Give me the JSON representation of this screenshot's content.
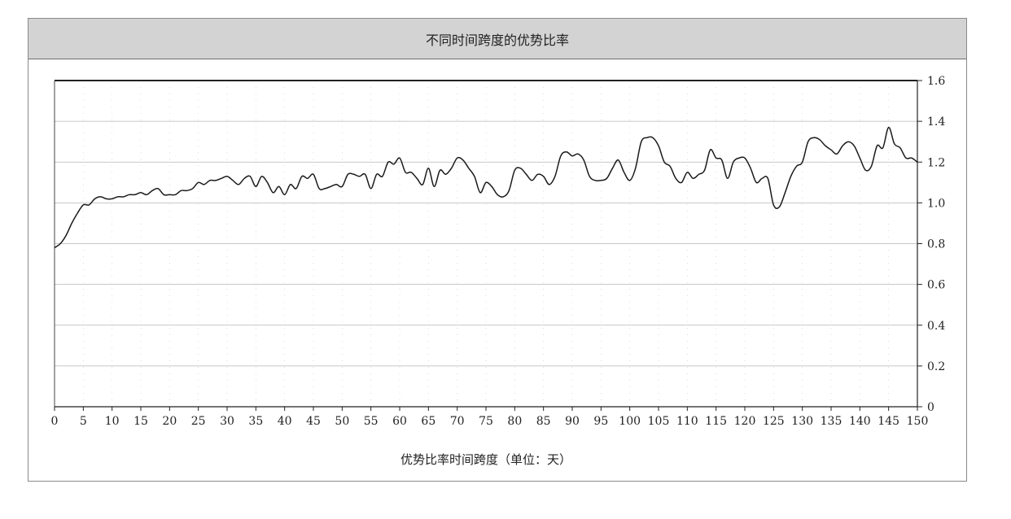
{
  "chart_data": {
    "type": "line",
    "title": "不同时间跨度的优势比率",
    "xlabel": "优势比率时间跨度（单位：天）",
    "ylabel": "",
    "xlim": [
      0,
      150
    ],
    "ylim": [
      0,
      1.6
    ],
    "x_ticks": [
      0,
      5,
      10,
      15,
      20,
      25,
      30,
      35,
      40,
      45,
      50,
      55,
      60,
      65,
      70,
      75,
      80,
      85,
      90,
      95,
      100,
      105,
      110,
      115,
      120,
      125,
      130,
      135,
      140,
      145,
      150
    ],
    "y_ticks": [
      0,
      0.2,
      0.4,
      0.6,
      0.8,
      1.0,
      1.2,
      1.4,
      1.6
    ],
    "y_tick_labels": [
      "0",
      "0.2",
      "0.4",
      "0.6",
      "0.8",
      "1.0",
      "1.2",
      "1.4",
      "1.6"
    ],
    "y_axis_side": "right",
    "grid": true,
    "series": [
      {
        "name": "",
        "points": [
          [
            0,
            0.78
          ],
          [
            1,
            0.8
          ],
          [
            2,
            0.84
          ],
          [
            3,
            0.9
          ],
          [
            4,
            0.95
          ],
          [
            5,
            0.99
          ],
          [
            6,
            0.99
          ],
          [
            7,
            1.02
          ],
          [
            8,
            1.03
          ],
          [
            9,
            1.02
          ],
          [
            10,
            1.02
          ],
          [
            11,
            1.03
          ],
          [
            12,
            1.03
          ],
          [
            13,
            1.04
          ],
          [
            14,
            1.04
          ],
          [
            15,
            1.05
          ],
          [
            16,
            1.04
          ],
          [
            17,
            1.06
          ],
          [
            18,
            1.07
          ],
          [
            19,
            1.04
          ],
          [
            20,
            1.04
          ],
          [
            21,
            1.04
          ],
          [
            22,
            1.06
          ],
          [
            23,
            1.06
          ],
          [
            24,
            1.07
          ],
          [
            25,
            1.1
          ],
          [
            26,
            1.09
          ],
          [
            27,
            1.11
          ],
          [
            28,
            1.11
          ],
          [
            29,
            1.12
          ],
          [
            30,
            1.13
          ],
          [
            31,
            1.11
          ],
          [
            32,
            1.09
          ],
          [
            33,
            1.12
          ],
          [
            34,
            1.13
          ],
          [
            35,
            1.08
          ],
          [
            36,
            1.13
          ],
          [
            37,
            1.1
          ],
          [
            38,
            1.05
          ],
          [
            39,
            1.08
          ],
          [
            40,
            1.04
          ],
          [
            41,
            1.09
          ],
          [
            42,
            1.07
          ],
          [
            43,
            1.13
          ],
          [
            44,
            1.12
          ],
          [
            45,
            1.14
          ],
          [
            46,
            1.07
          ],
          [
            47,
            1.07
          ],
          [
            48,
            1.08
          ],
          [
            49,
            1.09
          ],
          [
            50,
            1.08
          ],
          [
            51,
            1.14
          ],
          [
            52,
            1.14
          ],
          [
            53,
            1.13
          ],
          [
            54,
            1.14
          ],
          [
            55,
            1.07
          ],
          [
            56,
            1.14
          ],
          [
            57,
            1.13
          ],
          [
            58,
            1.2
          ],
          [
            59,
            1.19
          ],
          [
            60,
            1.22
          ],
          [
            61,
            1.15
          ],
          [
            62,
            1.15
          ],
          [
            63,
            1.12
          ],
          [
            64,
            1.09
          ],
          [
            65,
            1.17
          ],
          [
            66,
            1.08
          ],
          [
            67,
            1.16
          ],
          [
            68,
            1.14
          ],
          [
            69,
            1.17
          ],
          [
            70,
            1.22
          ],
          [
            71,
            1.21
          ],
          [
            72,
            1.17
          ],
          [
            73,
            1.13
          ],
          [
            74,
            1.05
          ],
          [
            75,
            1.1
          ],
          [
            76,
            1.08
          ],
          [
            77,
            1.04
          ],
          [
            78,
            1.03
          ],
          [
            79,
            1.06
          ],
          [
            80,
            1.16
          ],
          [
            81,
            1.17
          ],
          [
            82,
            1.14
          ],
          [
            83,
            1.11
          ],
          [
            84,
            1.14
          ],
          [
            85,
            1.13
          ],
          [
            86,
            1.09
          ],
          [
            87,
            1.13
          ],
          [
            88,
            1.23
          ],
          [
            89,
            1.25
          ],
          [
            90,
            1.23
          ],
          [
            91,
            1.24
          ],
          [
            92,
            1.21
          ],
          [
            93,
            1.13
          ],
          [
            94,
            1.11
          ],
          [
            95,
            1.11
          ],
          [
            96,
            1.12
          ],
          [
            97,
            1.17
          ],
          [
            98,
            1.21
          ],
          [
            99,
            1.15
          ],
          [
            100,
            1.11
          ],
          [
            101,
            1.17
          ],
          [
            102,
            1.3
          ],
          [
            103,
            1.32
          ],
          [
            104,
            1.32
          ],
          [
            105,
            1.28
          ],
          [
            106,
            1.2
          ],
          [
            107,
            1.18
          ],
          [
            108,
            1.12
          ],
          [
            109,
            1.1
          ],
          [
            110,
            1.15
          ],
          [
            111,
            1.12
          ],
          [
            112,
            1.14
          ],
          [
            113,
            1.16
          ],
          [
            114,
            1.26
          ],
          [
            115,
            1.22
          ],
          [
            116,
            1.21
          ],
          [
            117,
            1.12
          ],
          [
            118,
            1.2
          ],
          [
            119,
            1.22
          ],
          [
            120,
            1.22
          ],
          [
            121,
            1.17
          ],
          [
            122,
            1.1
          ],
          [
            123,
            1.12
          ],
          [
            124,
            1.12
          ],
          [
            125,
            0.99
          ],
          [
            126,
            0.98
          ],
          [
            127,
            1.05
          ],
          [
            128,
            1.13
          ],
          [
            129,
            1.18
          ],
          [
            130,
            1.2
          ],
          [
            131,
            1.3
          ],
          [
            132,
            1.32
          ],
          [
            133,
            1.31
          ],
          [
            134,
            1.28
          ],
          [
            135,
            1.26
          ],
          [
            136,
            1.24
          ],
          [
            137,
            1.28
          ],
          [
            138,
            1.3
          ],
          [
            139,
            1.28
          ],
          [
            140,
            1.22
          ],
          [
            141,
            1.16
          ],
          [
            142,
            1.18
          ],
          [
            143,
            1.28
          ],
          [
            144,
            1.27
          ],
          [
            145,
            1.37
          ],
          [
            146,
            1.29
          ],
          [
            147,
            1.27
          ],
          [
            148,
            1.22
          ],
          [
            149,
            1.22
          ],
          [
            150,
            1.2
          ]
        ]
      }
    ]
  }
}
